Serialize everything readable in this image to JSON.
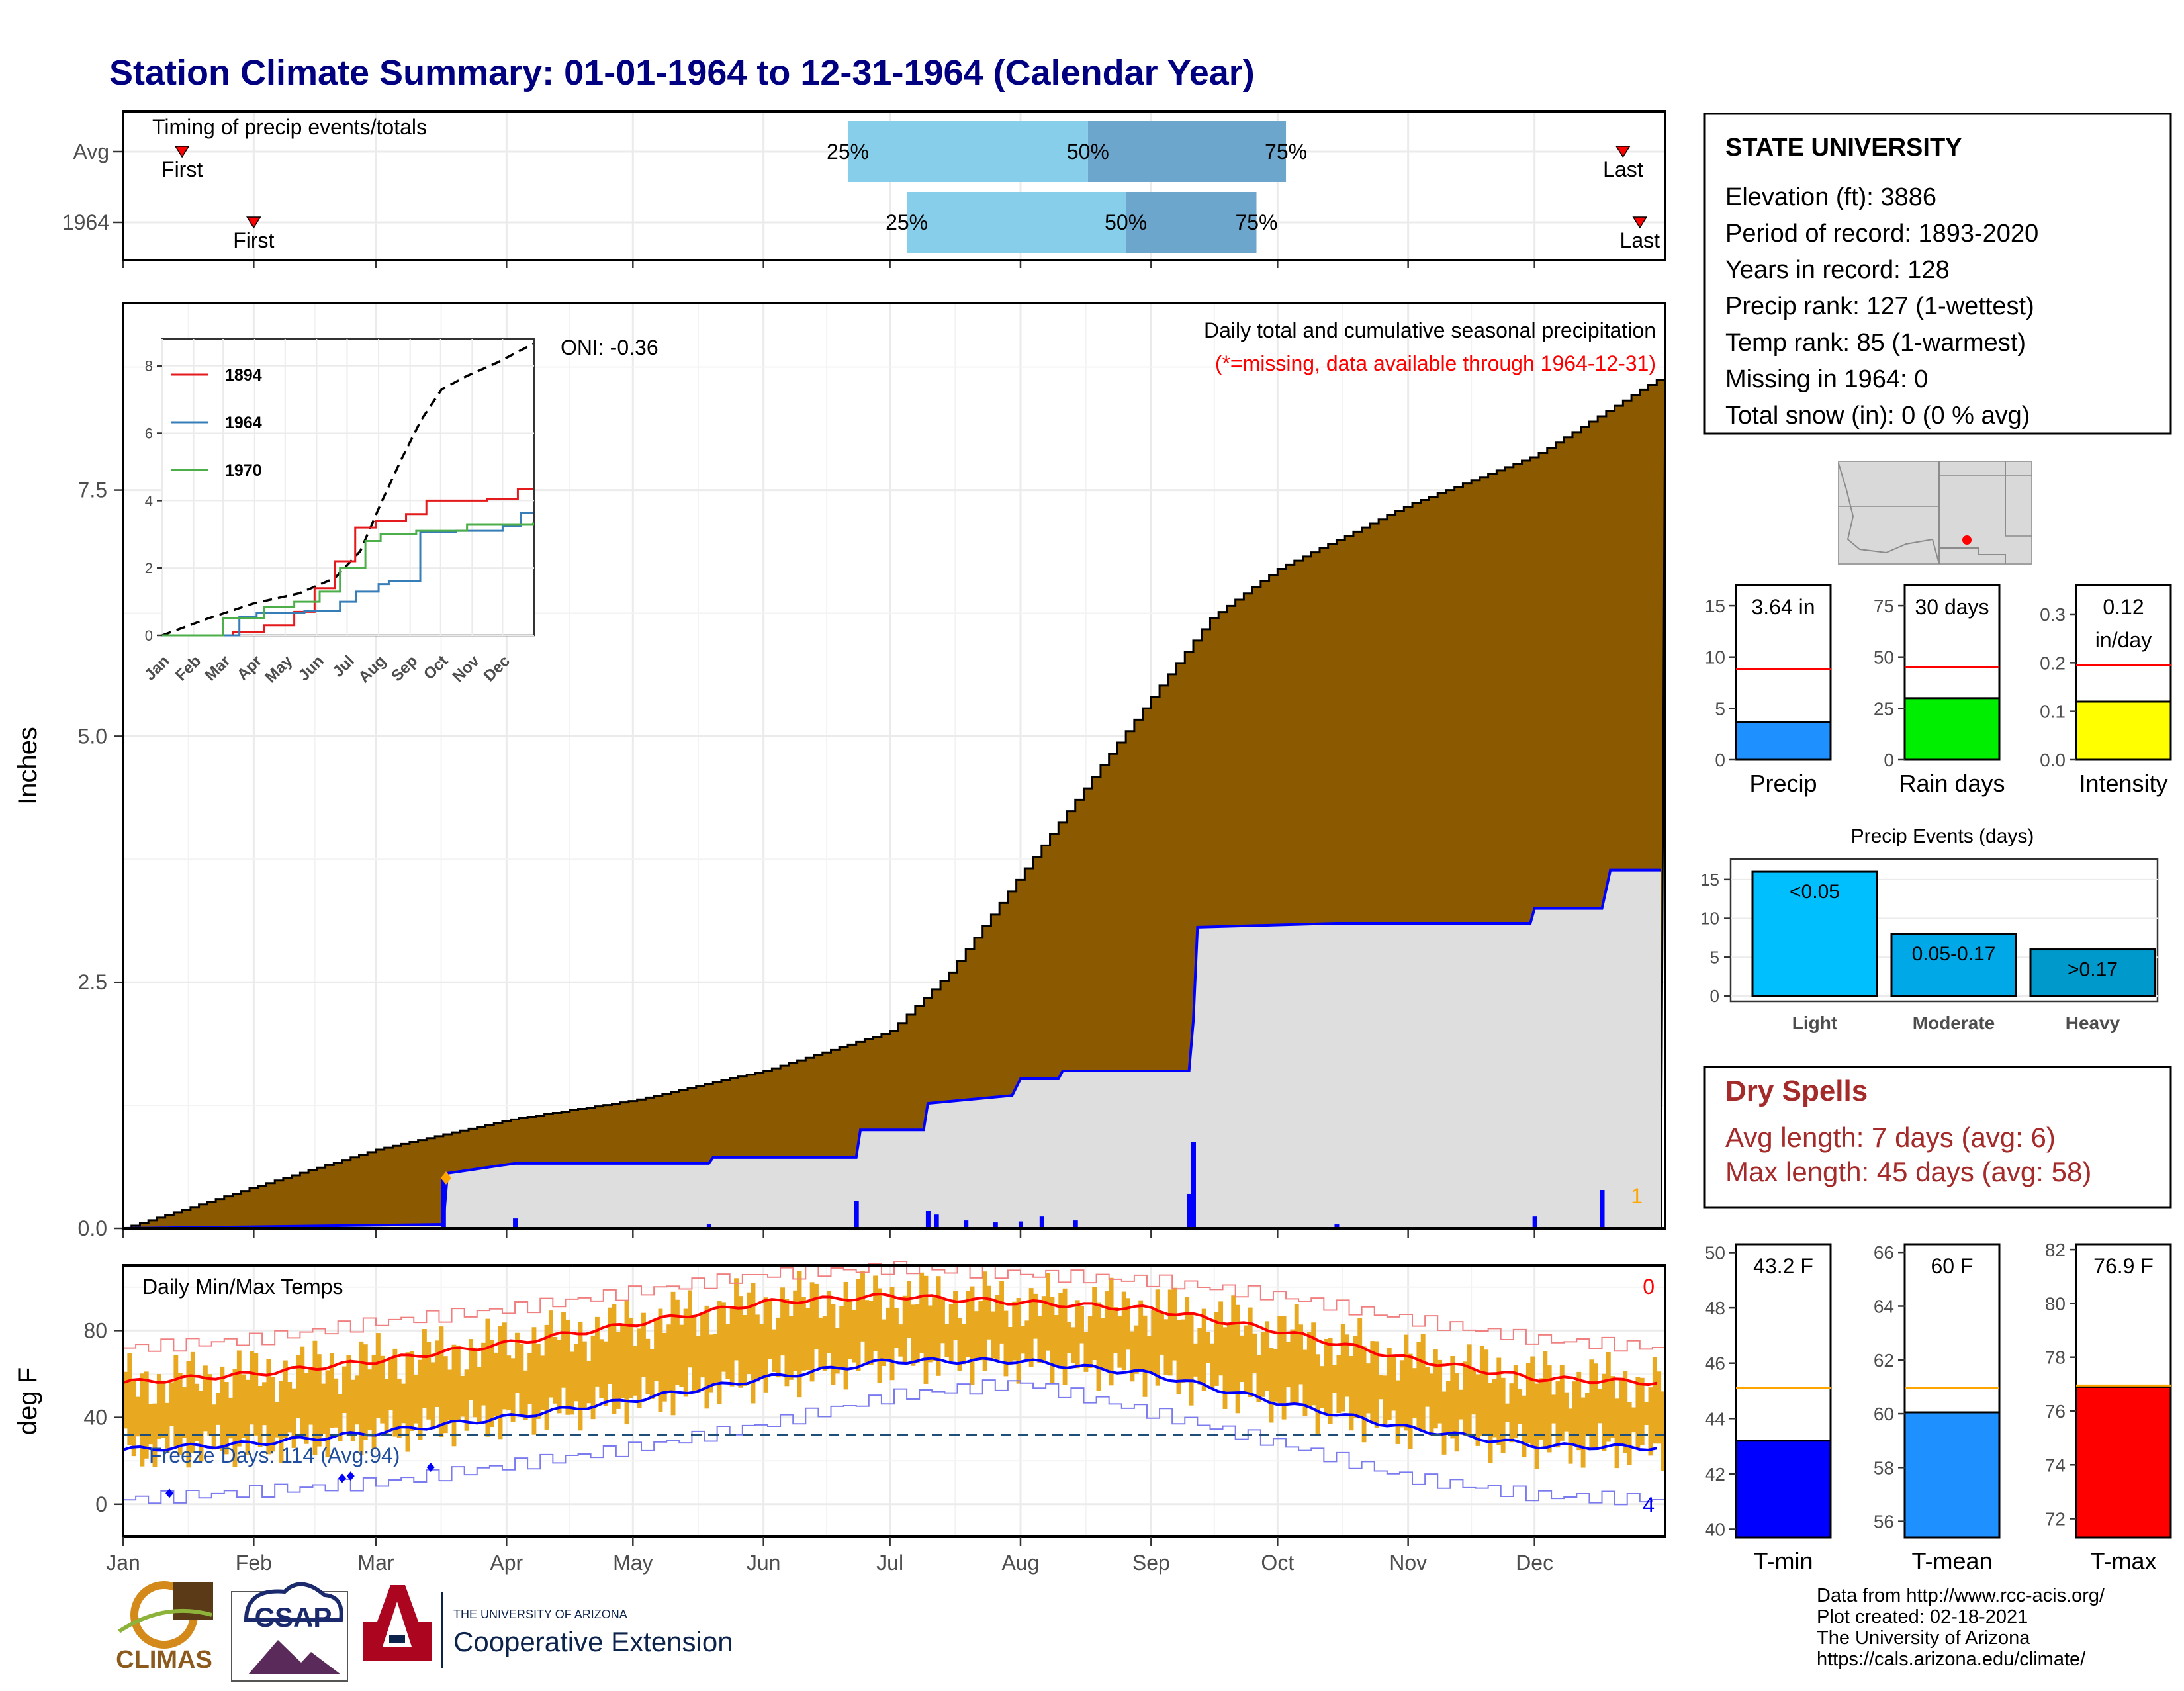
{
  "title": "Station Climate Summary: 01-01-1964 to 12-31-1964 (Calendar Year)",
  "months": [
    "Jan",
    "Feb",
    "Mar",
    "Apr",
    "May",
    "Jun",
    "Jul",
    "Aug",
    "Sep",
    "Oct",
    "Nov",
    "Dec"
  ],
  "timing": {
    "label": "Timing of precip events/totals",
    "rows": [
      {
        "name": "Avg",
        "first_label": "First",
        "last_label": "Last",
        "first_day": 14,
        "last_day": 356,
        "p25": 172,
        "p50": 229,
        "p75": 276,
        "p25_label": "25%",
        "p50_label": "50%",
        "p75_label": "75%"
      },
      {
        "name": "1964",
        "first_label": "First",
        "last_label": "Last",
        "first_day": 31,
        "last_day": 360,
        "p25": 186,
        "p50": 238,
        "p75": 269,
        "p25_label": "25%",
        "p50_label": "50%",
        "p75_label": "75%"
      }
    ]
  },
  "station": {
    "name": "STATE UNIVERSITY",
    "lines": [
      "Elevation (ft): 3886",
      "Period of record: 1893-2020",
      "Years in record: 128",
      "Precip rank: 127 (1-wettest)",
      "Temp rank: 85 (1-warmest)",
      "Missing in 1964: 0",
      "Total snow (in): 0 (0 % avg)"
    ]
  },
  "precip_panel": {
    "title": "Daily total and cumulative seasonal precipitation",
    "note": "(*=missing, data available through 1964-12-31)",
    "oni": "ONI: -0.36",
    "ylabel": "Inches",
    "y_ticks": [
      "0.0",
      "2.5",
      "5.0",
      "7.5"
    ],
    "count_label": "1"
  },
  "inset": {
    "y_ticks": [
      "0",
      "2",
      "4",
      "6",
      "8"
    ],
    "legend": [
      "1894",
      "1964",
      "1970"
    ],
    "colors": {
      "1894": "#e41a1c",
      "1964": "#377eb8",
      "1970": "#4daf4a"
    }
  },
  "bars": {
    "precip": {
      "label": "Precip",
      "value_label": "3.64 in",
      "value": 3.64,
      "avg": 8.8,
      "ylim": [
        0,
        17
      ],
      "ticks": [
        "0",
        "5",
        "10",
        "15"
      ],
      "color": "#1e90ff"
    },
    "raindays": {
      "label": "Rain days",
      "value_label": "30 days",
      "value": 30,
      "avg": 45,
      "ylim": [
        0,
        85
      ],
      "ticks": [
        "0",
        "25",
        "50",
        "75"
      ],
      "color": "#00ee00"
    },
    "intensity": {
      "label": "Intensity",
      "value_label": "0.12",
      "value_label2": "in/day",
      "value": 0.12,
      "avg": 0.195,
      "ylim": [
        0,
        0.36
      ],
      "ticks": [
        "0.0",
        "0.1",
        "0.2",
        "0.3"
      ],
      "color": "#ffff00"
    }
  },
  "events": {
    "title": "Precip Events (days)",
    "ticks": [
      "0",
      "5",
      "10",
      "15"
    ],
    "categories": [
      "Light",
      "Moderate",
      "Heavy"
    ],
    "bar_labels": [
      "<0.05",
      "0.05-0.17",
      ">0.17"
    ],
    "values": [
      16,
      8,
      6
    ],
    "colors": [
      "#00bfff",
      "#00a8e8",
      "#0099cc"
    ]
  },
  "dry_spells": {
    "title": "Dry Spells",
    "avg": "Avg length: 7 days (avg: 6)",
    "max": "Max length: 45 days (avg: 58)"
  },
  "temp_panel": {
    "title": "Daily Min/Max Temps",
    "ylabel": "deg F",
    "y_ticks": [
      "0",
      "40",
      "80"
    ],
    "freeze": "Freeze Days: 114 (Avg:94)",
    "count_top": "0",
    "count_bottom": "4"
  },
  "temp_bars": {
    "tmin": {
      "label": "T-min",
      "value_label": "43.2 F",
      "value": 43.2,
      "avg": 45.1,
      "ylim": [
        39.7,
        50.3
      ],
      "ticks": [
        "40",
        "42",
        "44",
        "46",
        "48",
        "50"
      ],
      "color": "#0000ff"
    },
    "tmean": {
      "label": "T-mean",
      "value_label": "60 F",
      "value": 60.05,
      "avg": 60.95,
      "ylim": [
        55.4,
        66.3
      ],
      "ticks": [
        "56",
        "58",
        "60",
        "62",
        "64",
        "66"
      ],
      "color": "#1e90ff"
    },
    "tmax": {
      "label": "T-max",
      "value_label": "76.9 F",
      "value": 76.9,
      "avg": 76.95,
      "ylim": [
        71.3,
        82.2
      ],
      "ticks": [
        "72",
        "74",
        "76",
        "78",
        "80",
        "82"
      ],
      "color": "#ff0000"
    }
  },
  "credits": [
    "Data from http://www.rcc-acis.org/",
    "Plot created: 02-18-2021",
    "The University of Arizona",
    "https://cals.arizona.edu/climate/"
  ],
  "logos": {
    "climas": "CLIMAS",
    "csap": "CSAP",
    "ua_line1": "THE UNIVERSITY OF ARIZONA",
    "ua_line2": "Cooperative Extension"
  },
  "chart_data": [
    {
      "type": "area",
      "title": "Daily total and cumulative seasonal precipitation",
      "ylabel": "Inches",
      "ylim": [
        0,
        9.4
      ],
      "x_months": [
        "Jan",
        "Feb",
        "Mar",
        "Apr",
        "May",
        "Jun",
        "Jul",
        "Aug",
        "Sep",
        "Oct",
        "Nov",
        "Dec"
      ],
      "series": [
        {
          "name": "Avg cumulative",
          "x_day": [
            0,
            31,
            60,
            91,
            121,
            152,
            182,
            196,
            213,
            244,
            258,
            274,
            305,
            335,
            365
          ],
          "y": [
            0,
            0.42,
            0.8,
            1.1,
            1.3,
            1.6,
            2.0,
            2.6,
            3.6,
            5.4,
            6.2,
            6.7,
            7.35,
            7.85,
            8.65
          ]
        },
        {
          "name": "1964 cumulative",
          "x_day": [
            0,
            76,
            77,
            93,
            139,
            140,
            174,
            175,
            190,
            191,
            211,
            213,
            222,
            223,
            253,
            254,
            255,
            288,
            334,
            335,
            351,
            353,
            365
          ],
          "y": [
            0,
            0.04,
            0.56,
            0.66,
            0.66,
            0.72,
            0.72,
            1.0,
            1.0,
            1.27,
            1.35,
            1.52,
            1.52,
            1.6,
            1.6,
            2.1,
            3.06,
            3.1,
            3.1,
            3.25,
            3.25,
            3.64,
            3.64
          ]
        }
      ],
      "daily_bars": {
        "x_day": [
          76,
          93,
          139,
          174,
          191,
          193,
          200,
          207,
          213,
          218,
          226,
          253,
          254,
          288,
          335,
          351
        ],
        "y": [
          0.52,
          0.1,
          0.04,
          0.28,
          0.18,
          0.14,
          0.08,
          0.06,
          0.07,
          0.12,
          0.08,
          0.35,
          0.88,
          0.04,
          0.12,
          0.39
        ]
      }
    },
    {
      "type": "line",
      "title": "",
      "ylim": [
        0,
        8.8
      ],
      "x_months": [
        "Jan",
        "Feb",
        "Mar",
        "Apr",
        "May",
        "Jun",
        "Jul",
        "Aug",
        "Sep",
        "Oct",
        "Nov",
        "Dec"
      ],
      "series": [
        {
          "name": "Avg",
          "x_day": [
            0,
            45,
            90,
            135,
            170,
            195,
            215,
            235,
            255,
            275,
            300,
            330,
            365
          ],
          "y": [
            0,
            0.5,
            0.95,
            1.25,
            1.7,
            2.5,
            3.9,
            5.2,
            6.4,
            7.3,
            7.7,
            8.1,
            8.65
          ]
        },
        {
          "name": "1894",
          "x_day": [
            0,
            70,
            100,
            130,
            150,
            170,
            190,
            210,
            240,
            260,
            290,
            320,
            350,
            365
          ],
          "y": [
            0,
            0.1,
            0.3,
            0.7,
            1.4,
            2.2,
            3.2,
            3.4,
            3.6,
            4.0,
            4.0,
            4.05,
            4.35,
            4.35
          ]
        },
        {
          "name": "1964",
          "x_day": [
            0,
            76,
            93,
            140,
            175,
            191,
            213,
            223,
            254,
            289,
            335,
            353,
            365
          ],
          "y": [
            0,
            0.55,
            0.66,
            0.72,
            1.0,
            1.3,
            1.52,
            1.6,
            3.06,
            3.1,
            3.25,
            3.64,
            3.64
          ]
        },
        {
          "name": "1970",
          "x_day": [
            0,
            60,
            100,
            130,
            155,
            175,
            200,
            215,
            250,
            300,
            365
          ],
          "y": [
            0,
            0.5,
            0.85,
            1.0,
            1.3,
            2.0,
            2.8,
            3.0,
            3.1,
            3.3,
            3.35
          ]
        }
      ]
    },
    {
      "type": "line",
      "title": "Daily Min/Max Temps",
      "ylabel": "deg F",
      "ylim": [
        -15,
        110
      ],
      "x_months": [
        "Jan",
        "Feb",
        "Mar",
        "Apr",
        "May",
        "Jun",
        "Jul",
        "Aug",
        "Sep",
        "Oct",
        "Nov",
        "Dec"
      ],
      "series": [
        {
          "name": "Avg max",
          "x_day": [
            0,
            31,
            60,
            91,
            121,
            152,
            182,
            213,
            244,
            274,
            305,
            335,
            365
          ],
          "y": [
            56,
            60,
            66,
            74,
            83,
            93,
            96,
            93,
            90,
            80,
            67,
            58,
            56
          ]
        },
        {
          "name": "Avg min",
          "x_day": [
            0,
            31,
            60,
            91,
            121,
            152,
            182,
            213,
            244,
            274,
            305,
            335,
            365
          ],
          "y": [
            25,
            28,
            33,
            40,
            48,
            58,
            66,
            66,
            60,
            47,
            35,
            27,
            26
          ]
        },
        {
          "name": "Record max",
          "x_day": [
            0,
            31,
            60,
            91,
            121,
            152,
            182,
            213,
            244,
            274,
            305,
            335,
            365
          ],
          "y": [
            72,
            76,
            84,
            90,
            98,
            106,
            109,
            106,
            103,
            96,
            85,
            76,
            72
          ]
        },
        {
          "name": "Record min",
          "x_day": [
            0,
            31,
            60,
            91,
            121,
            152,
            182,
            213,
            244,
            274,
            305,
            335,
            365
          ],
          "y": [
            2,
            6,
            10,
            18,
            26,
            37,
            50,
            56,
            42,
            28,
            12,
            4,
            2
          ]
        },
        {
          "name": "Freeze line",
          "x_day": [
            0,
            365
          ],
          "y": [
            32,
            32
          ]
        }
      ]
    }
  ]
}
